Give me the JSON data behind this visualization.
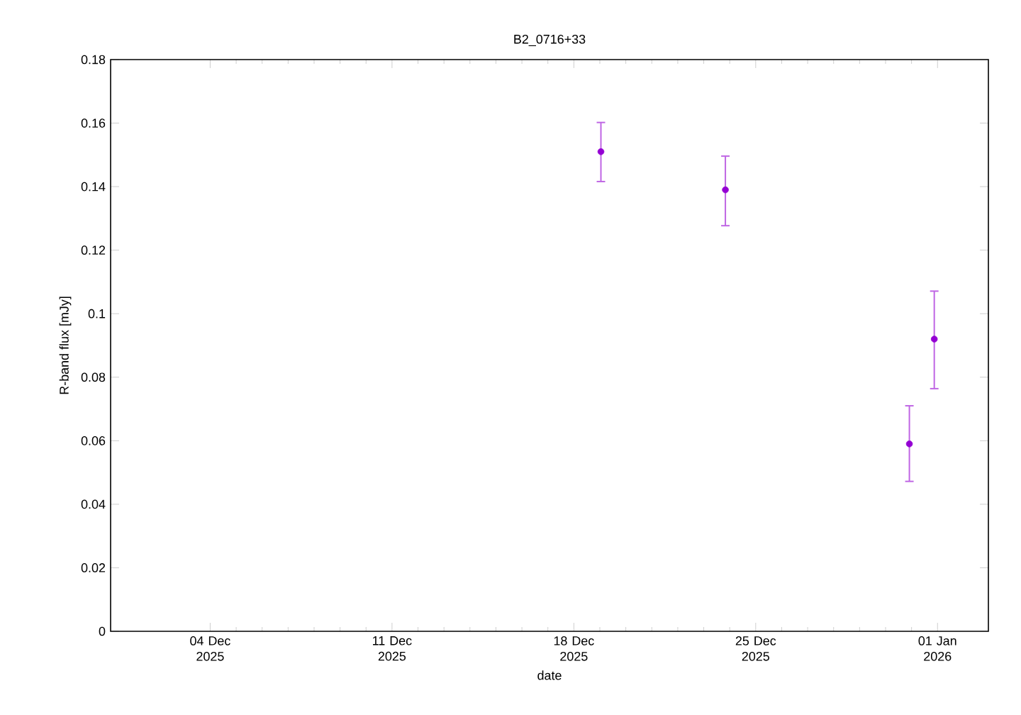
{
  "chart_data": {
    "type": "scatter",
    "title": "B2_0716+33",
    "xlabel": "date",
    "ylabel": "R-band flux [mJy]",
    "x": [
      "2025-12-19T01:00",
      "2025-12-23T20:00",
      "2025-12-30T22:00",
      "2025-12-31T21:00"
    ],
    "series": [
      {
        "color": "#9400d3",
        "values": [
          0.151,
          0.139,
          0.059,
          0.092
        ],
        "errors": [
          [
            0.1416,
            0.1602
          ],
          [
            0.1277,
            0.1496
          ],
          [
            0.0472,
            0.071
          ],
          [
            0.0764,
            0.1071
          ]
        ]
      }
    ],
    "marker": "circle",
    "xlim": [
      "2025-11-30T04:00",
      "2026-01-02T23:00"
    ],
    "xticks": [
      {
        "value": "2025-12-04",
        "label": "04 Dec 2025"
      },
      {
        "value": "2025-12-11",
        "label": "11 Dec 2025"
      },
      {
        "value": "2025-12-18",
        "label": "18 Dec 2025"
      },
      {
        "value": "2025-12-25",
        "label": "25 Dec 2025"
      },
      {
        "value": "2026-01-01",
        "label": "01 Jan 2026"
      }
    ],
    "ylim": [
      0,
      0.18
    ],
    "yticks": [
      0,
      0.02,
      0.04,
      0.06,
      0.08,
      0.1,
      0.12,
      0.14,
      0.16,
      0.18
    ]
  }
}
